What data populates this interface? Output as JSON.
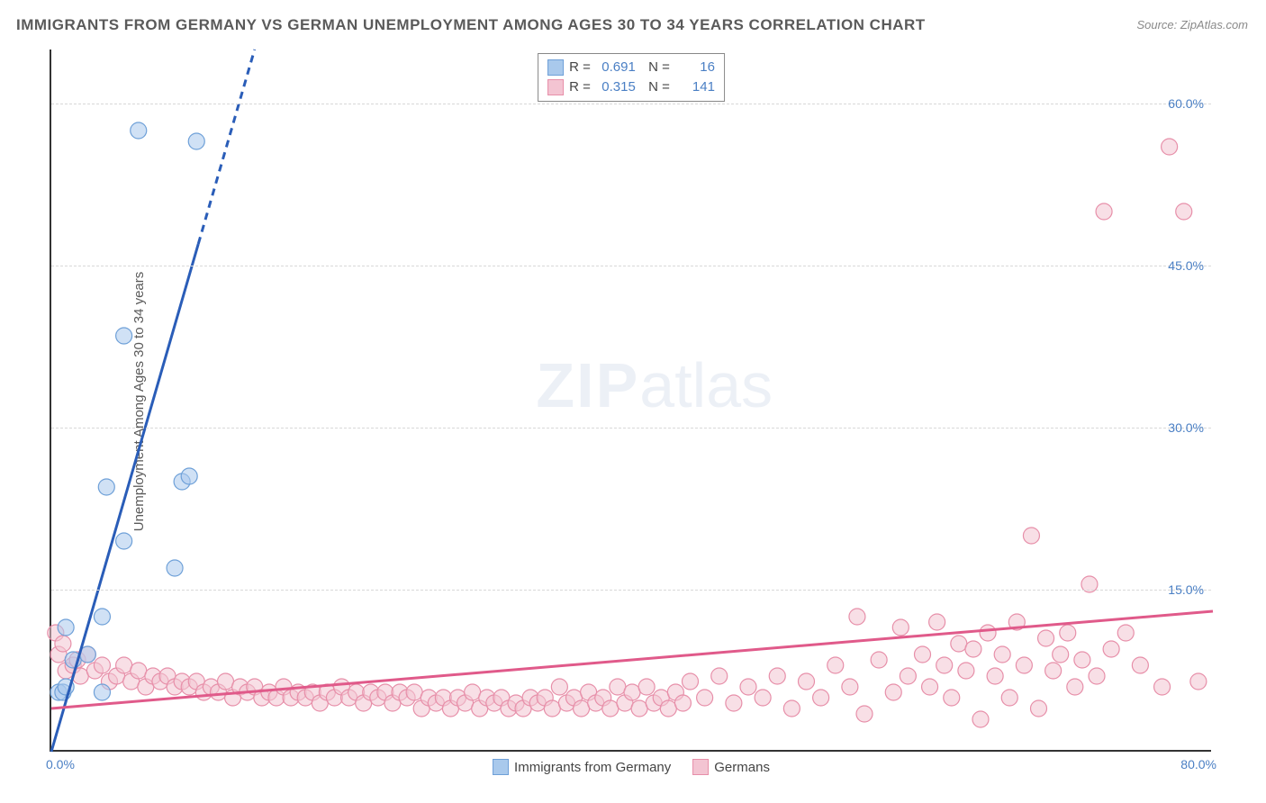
{
  "title": "IMMIGRANTS FROM GERMANY VS GERMAN UNEMPLOYMENT AMONG AGES 30 TO 34 YEARS CORRELATION CHART",
  "source": "Source: ZipAtlas.com",
  "ylabel": "Unemployment Among Ages 30 to 34 years",
  "watermark_bold": "ZIP",
  "watermark_rest": "atlas",
  "chart": {
    "type": "scatter",
    "background_color": "#ffffff",
    "grid_color": "#d8d8d8",
    "axis_color": "#333333",
    "xlim": [
      0,
      80
    ],
    "ylim": [
      0,
      65
    ],
    "ytick_values": [
      15,
      30,
      45,
      60
    ],
    "ytick_labels": [
      "15.0%",
      "30.0%",
      "45.0%",
      "60.0%"
    ],
    "xtick_left": "0.0%",
    "xtick_right": "80.0%",
    "tick_label_color": "#4a7fc4",
    "tick_fontsize": 14,
    "series": [
      {
        "name": "Immigrants from Germany",
        "marker_color": "#a9c9ec",
        "marker_stroke": "#6ea0d8",
        "marker_radius": 9,
        "line_color": "#2a5db8",
        "line_width": 3,
        "R": "0.691",
        "N": "16",
        "regression": {
          "x1": 0,
          "y1": 0,
          "x2": 14,
          "y2": 65,
          "dash_from_y": 47
        },
        "points": [
          [
            0.5,
            5.5
          ],
          [
            0.8,
            5.5
          ],
          [
            1.0,
            6.0
          ],
          [
            1.0,
            11.5
          ],
          [
            1.5,
            8.5
          ],
          [
            2.5,
            9.0
          ],
          [
            3.5,
            5.5
          ],
          [
            3.5,
            12.5
          ],
          [
            3.8,
            24.5
          ],
          [
            5.0,
            19.5
          ],
          [
            5.0,
            38.5
          ],
          [
            6.0,
            57.5
          ],
          [
            8.5,
            17.0
          ],
          [
            9.0,
            25.0
          ],
          [
            9.5,
            25.5
          ],
          [
            10.0,
            56.5
          ]
        ]
      },
      {
        "name": "Germans",
        "marker_color": "#f3c4d2",
        "marker_stroke": "#e78fa9",
        "marker_radius": 9,
        "line_color": "#e05a8a",
        "line_width": 3,
        "R": "0.315",
        "N": "141",
        "regression": {
          "x1": 0,
          "y1": 4.0,
          "x2": 80,
          "y2": 13.0
        },
        "points": [
          [
            0.3,
            11.0
          ],
          [
            0.5,
            9.0
          ],
          [
            0.8,
            10.0
          ],
          [
            1.0,
            7.5
          ],
          [
            1.5,
            8.0
          ],
          [
            1.8,
            8.5
          ],
          [
            2.0,
            7.0
          ],
          [
            2.5,
            9.0
          ],
          [
            3.0,
            7.5
          ],
          [
            3.5,
            8.0
          ],
          [
            4.0,
            6.5
          ],
          [
            4.5,
            7.0
          ],
          [
            5.0,
            8.0
          ],
          [
            5.5,
            6.5
          ],
          [
            6.0,
            7.5
          ],
          [
            6.5,
            6.0
          ],
          [
            7.0,
            7.0
          ],
          [
            7.5,
            6.5
          ],
          [
            8.0,
            7.0
          ],
          [
            8.5,
            6.0
          ],
          [
            9.0,
            6.5
          ],
          [
            9.5,
            6.0
          ],
          [
            10.0,
            6.5
          ],
          [
            10.5,
            5.5
          ],
          [
            11.0,
            6.0
          ],
          [
            11.5,
            5.5
          ],
          [
            12.0,
            6.5
          ],
          [
            12.5,
            5.0
          ],
          [
            13.0,
            6.0
          ],
          [
            13.5,
            5.5
          ],
          [
            14.0,
            6.0
          ],
          [
            14.5,
            5.0
          ],
          [
            15.0,
            5.5
          ],
          [
            15.5,
            5.0
          ],
          [
            16.0,
            6.0
          ],
          [
            16.5,
            5.0
          ],
          [
            17.0,
            5.5
          ],
          [
            17.5,
            5.0
          ],
          [
            18.0,
            5.5
          ],
          [
            18.5,
            4.5
          ],
          [
            19.0,
            5.5
          ],
          [
            19.5,
            5.0
          ],
          [
            20.0,
            6.0
          ],
          [
            20.5,
            5.0
          ],
          [
            21.0,
            5.5
          ],
          [
            21.5,
            4.5
          ],
          [
            22.0,
            5.5
          ],
          [
            22.5,
            5.0
          ],
          [
            23.0,
            5.5
          ],
          [
            23.5,
            4.5
          ],
          [
            24.0,
            5.5
          ],
          [
            24.5,
            5.0
          ],
          [
            25.0,
            5.5
          ],
          [
            25.5,
            4.0
          ],
          [
            26.0,
            5.0
          ],
          [
            26.5,
            4.5
          ],
          [
            27.0,
            5.0
          ],
          [
            27.5,
            4.0
          ],
          [
            28.0,
            5.0
          ],
          [
            28.5,
            4.5
          ],
          [
            29.0,
            5.5
          ],
          [
            29.5,
            4.0
          ],
          [
            30.0,
            5.0
          ],
          [
            30.5,
            4.5
          ],
          [
            31.0,
            5.0
          ],
          [
            31.5,
            4.0
          ],
          [
            32.0,
            4.5
          ],
          [
            32.5,
            4.0
          ],
          [
            33.0,
            5.0
          ],
          [
            33.5,
            4.5
          ],
          [
            34.0,
            5.0
          ],
          [
            34.5,
            4.0
          ],
          [
            35.0,
            6.0
          ],
          [
            35.5,
            4.5
          ],
          [
            36.0,
            5.0
          ],
          [
            36.5,
            4.0
          ],
          [
            37.0,
            5.5
          ],
          [
            37.5,
            4.5
          ],
          [
            38.0,
            5.0
          ],
          [
            38.5,
            4.0
          ],
          [
            39.0,
            6.0
          ],
          [
            39.5,
            4.5
          ],
          [
            40.0,
            5.5
          ],
          [
            40.5,
            4.0
          ],
          [
            41.0,
            6.0
          ],
          [
            41.5,
            4.5
          ],
          [
            42.0,
            5.0
          ],
          [
            42.5,
            4.0
          ],
          [
            43.0,
            5.5
          ],
          [
            43.5,
            4.5
          ],
          [
            44.0,
            6.5
          ],
          [
            45.0,
            5.0
          ],
          [
            46.0,
            7.0
          ],
          [
            47.0,
            4.5
          ],
          [
            48.0,
            6.0
          ],
          [
            49.0,
            5.0
          ],
          [
            50.0,
            7.0
          ],
          [
            51.0,
            4.0
          ],
          [
            52.0,
            6.5
          ],
          [
            53.0,
            5.0
          ],
          [
            54.0,
            8.0
          ],
          [
            55.0,
            6.0
          ],
          [
            55.5,
            12.5
          ],
          [
            56.0,
            3.5
          ],
          [
            57.0,
            8.5
          ],
          [
            58.0,
            5.5
          ],
          [
            58.5,
            11.5
          ],
          [
            59.0,
            7.0
          ],
          [
            60.0,
            9.0
          ],
          [
            60.5,
            6.0
          ],
          [
            61.0,
            12.0
          ],
          [
            61.5,
            8.0
          ],
          [
            62.0,
            5.0
          ],
          [
            62.5,
            10.0
          ],
          [
            63.0,
            7.5
          ],
          [
            63.5,
            9.5
          ],
          [
            64.0,
            3.0
          ],
          [
            64.5,
            11.0
          ],
          [
            65.0,
            7.0
          ],
          [
            65.5,
            9.0
          ],
          [
            66.0,
            5.0
          ],
          [
            66.5,
            12.0
          ],
          [
            67.0,
            8.0
          ],
          [
            67.5,
            20.0
          ],
          [
            68.0,
            4.0
          ],
          [
            68.5,
            10.5
          ],
          [
            69.0,
            7.5
          ],
          [
            69.5,
            9.0
          ],
          [
            70.0,
            11.0
          ],
          [
            70.5,
            6.0
          ],
          [
            71.0,
            8.5
          ],
          [
            71.5,
            15.5
          ],
          [
            72.0,
            7.0
          ],
          [
            72.5,
            50.0
          ],
          [
            73.0,
            9.5
          ],
          [
            74.0,
            11.0
          ],
          [
            75.0,
            8.0
          ],
          [
            76.5,
            6.0
          ],
          [
            77.0,
            56.0
          ],
          [
            78.0,
            50.0
          ],
          [
            79.0,
            6.5
          ]
        ]
      }
    ],
    "bottom_legend": [
      {
        "label": "Immigrants from Germany",
        "fill": "#a9c9ec",
        "stroke": "#6ea0d8"
      },
      {
        "label": "Germans",
        "fill": "#f3c4d2",
        "stroke": "#e78fa9"
      }
    ]
  }
}
